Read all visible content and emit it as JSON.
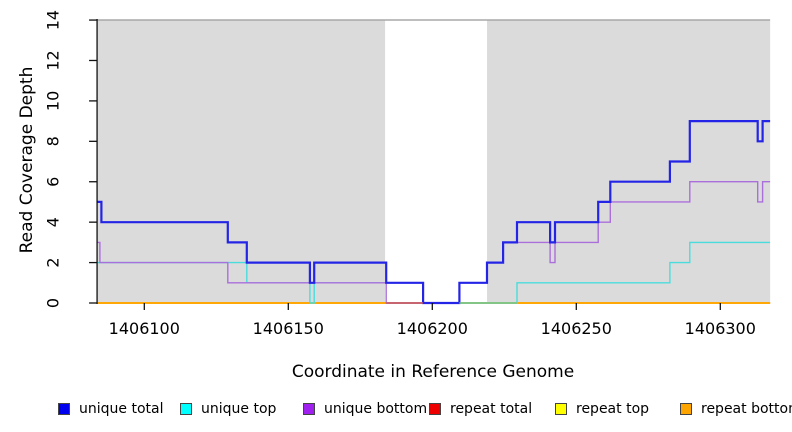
{
  "chart_data": {
    "type": "line",
    "subtype": "step-coverage",
    "title": "",
    "xlabel": "Coordinate in Reference Genome",
    "ylabel": "Read Coverage Depth",
    "xlim": [
      1406083.6,
      1406317.3
    ],
    "ylim": [
      0,
      14
    ],
    "x_ticks": [
      1406100,
      1406150,
      1406200,
      1406250,
      1406300
    ],
    "y_ticks": [
      0,
      2,
      4,
      6,
      8,
      10,
      12,
      14
    ],
    "grid": false,
    "legend_position": "bottom",
    "plot_bg_color": "#ffffff",
    "band_color": "#DBDBDB",
    "top_border_color": "#A8A8A8",
    "background_bands": [
      {
        "x1": 1406083.6,
        "x2": 1406183.6
      },
      {
        "x1": 1406219.0,
        "x2": 1406317.3
      }
    ],
    "series": [
      {
        "name": "repeat total",
        "color": "#EE0000",
        "width": 1.4,
        "steps": [
          [
            1406083.6,
            0
          ]
        ]
      },
      {
        "name": "repeat top",
        "color": "#FFFF00",
        "width": 1.4,
        "steps": [
          [
            1406083.6,
            0
          ]
        ]
      },
      {
        "name": "repeat bottom",
        "color": "#FFA500",
        "width": 1.7,
        "steps": [
          [
            1406083.6,
            0
          ]
        ]
      },
      {
        "name": "unique top",
        "color": "#4ADCDC",
        "width": 1.4,
        "steps": [
          [
            1406083.6,
            2
          ],
          [
            1406135.6,
            1
          ],
          [
            1406157.5,
            0
          ],
          [
            1406159,
            1
          ],
          [
            1406196.8,
            0
          ],
          [
            1406229.4,
            1
          ],
          [
            1406282.5,
            2
          ],
          [
            1406289.4,
            3
          ]
        ]
      },
      {
        "name": "unique bottom",
        "color": "#AB6FDC",
        "width": 1.4,
        "steps": [
          [
            1406083.6,
            3
          ],
          [
            1406084.6,
            2
          ],
          [
            1406129,
            1
          ],
          [
            1406184,
            0
          ],
          [
            1406209.4,
            1
          ],
          [
            1406219,
            2
          ],
          [
            1406224.6,
            3
          ],
          [
            1406240.9,
            2
          ],
          [
            1406242.6,
            3
          ],
          [
            1406257.6,
            4
          ],
          [
            1406261.8,
            5
          ],
          [
            1406289.4,
            6
          ],
          [
            1406313,
            5
          ],
          [
            1406314.7,
            6
          ]
        ]
      },
      {
        "name": "unique total",
        "color": "#2424E6",
        "width": 2.2,
        "steps": [
          [
            1406083.6,
            5
          ],
          [
            1406085.1,
            4
          ],
          [
            1406129,
            3
          ],
          [
            1406135.6,
            2
          ],
          [
            1406157.5,
            1
          ],
          [
            1406159,
            2
          ],
          [
            1406184,
            1
          ],
          [
            1406196.8,
            0
          ],
          [
            1406209.4,
            1
          ],
          [
            1406219,
            2
          ],
          [
            1406224.6,
            3
          ],
          [
            1406229.4,
            4
          ],
          [
            1406240.9,
            3
          ],
          [
            1406242.6,
            4
          ],
          [
            1406257.6,
            5
          ],
          [
            1406261.8,
            6
          ],
          [
            1406282.5,
            7
          ],
          [
            1406289.4,
            9
          ],
          [
            1406313,
            8
          ],
          [
            1406314.7,
            9
          ]
        ]
      }
    ],
    "zero_line_overlays": [
      {
        "x1": 1406184.0,
        "x2": 1406196.8,
        "color": "#C2566E"
      },
      {
        "x1": 1406209.4,
        "x2": 1406229.4,
        "color": "#77C68B"
      }
    ],
    "legend": [
      {
        "label": "unique total",
        "color": "#0000EE"
      },
      {
        "label": "unique top",
        "color": "#00FFFF"
      },
      {
        "label": "unique bottom",
        "color": "#A020F0"
      },
      {
        "label": "repeat total",
        "color": "#EE0000"
      },
      {
        "label": "repeat top",
        "color": "#FFFF00"
      },
      {
        "label": "repeat bottom",
        "color": "#FFA500"
      }
    ]
  }
}
